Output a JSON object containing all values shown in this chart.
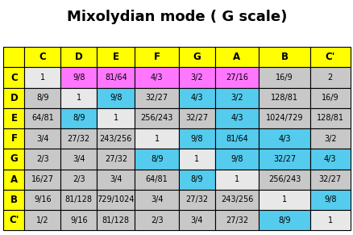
{
  "title": "Mixolydian mode ( G scale)",
  "headers": [
    "",
    "C",
    "D",
    "E",
    "F",
    "G",
    "A",
    "B",
    "C'"
  ],
  "row_labels": [
    "C",
    "D",
    "E",
    "F",
    "G",
    "A",
    "B",
    "C'"
  ],
  "table_data": [
    [
      "1",
      "9/8",
      "81/64",
      "4/3",
      "3/2",
      "27/16",
      "16/9",
      "2"
    ],
    [
      "8/9",
      "1",
      "9/8",
      "32/27",
      "4/3",
      "3/2",
      "128/81",
      "16/9"
    ],
    [
      "64/81",
      "8/9",
      "1",
      "256/243",
      "32/27",
      "4/3",
      "1024/729",
      "128/81"
    ],
    [
      "3/4",
      "27/32",
      "243/256",
      "1",
      "9/8",
      "81/64",
      "4/3",
      "3/2"
    ],
    [
      "2/3",
      "3/4",
      "27/32",
      "8/9",
      "1",
      "9/8",
      "32/27",
      "4/3"
    ],
    [
      "16/27",
      "2/3",
      "3/4",
      "64/81",
      "8/9",
      "1",
      "256/243",
      "32/27"
    ],
    [
      "9/16",
      "81/128",
      "729/1024",
      "3/4",
      "27/32",
      "243/256",
      "1",
      "9/8"
    ],
    [
      "1/2",
      "9/16",
      "81/128",
      "2/3",
      "3/4",
      "27/32",
      "8/9",
      "1"
    ]
  ],
  "cell_colors": [
    [
      "white",
      "magenta",
      "magenta",
      "magenta",
      "magenta",
      "magenta",
      "lightgray",
      "lightgray"
    ],
    [
      "lightgray",
      "white",
      "skyblue",
      "lightgray",
      "skyblue",
      "skyblue",
      "lightgray",
      "lightgray"
    ],
    [
      "lightgray",
      "skyblue",
      "white",
      "lightgray",
      "lightgray",
      "skyblue",
      "lightgray",
      "lightgray"
    ],
    [
      "lightgray",
      "lightgray",
      "lightgray",
      "white",
      "skyblue",
      "skyblue",
      "skyblue",
      "lightgray"
    ],
    [
      "lightgray",
      "lightgray",
      "lightgray",
      "skyblue",
      "white",
      "skyblue",
      "skyblue",
      "skyblue"
    ],
    [
      "lightgray",
      "lightgray",
      "lightgray",
      "lightgray",
      "skyblue",
      "white",
      "lightgray",
      "lightgray"
    ],
    [
      "lightgray",
      "lightgray",
      "lightgray",
      "lightgray",
      "lightgray",
      "lightgray",
      "white",
      "skyblue"
    ],
    [
      "lightgray",
      "lightgray",
      "lightgray",
      "lightgray",
      "lightgray",
      "lightgray",
      "skyblue",
      "white"
    ]
  ],
  "color_map": {
    "white": "#e8e8e8",
    "lightgray": "#c8c8c8",
    "magenta": "#ff77ff",
    "skyblue": "#55ccee",
    "yellow": "#ffff00"
  },
  "title_fontsize": 13,
  "cell_fontsize": 7,
  "header_fontsize": 8.5
}
